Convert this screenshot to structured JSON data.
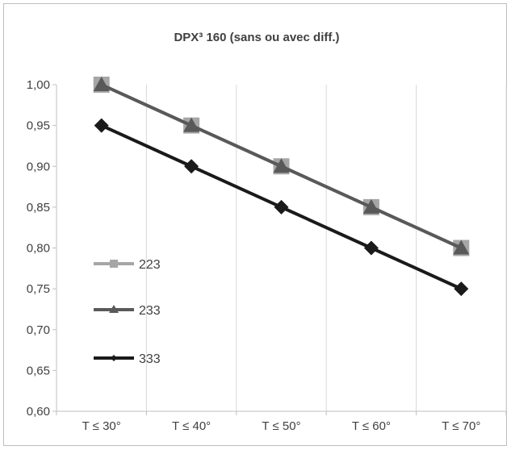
{
  "chart_data": {
    "type": "line",
    "title": "DPX³ 160 (sans ou avec diff.)",
    "xlabel": "",
    "ylabel": "",
    "categories": [
      "T ≤ 30°",
      "T ≤ 40°",
      "T ≤ 50°",
      "T ≤ 60°",
      "T ≤ 70°"
    ],
    "ylim": [
      0.6,
      1.0
    ],
    "yticks": [
      "0,60",
      "0,65",
      "0,70",
      "0,75",
      "0,80",
      "0,85",
      "0,90",
      "0,95",
      "1,00"
    ],
    "grid": "vertical",
    "legend_position": "left, inside plot",
    "series": [
      {
        "name": "223",
        "values": [
          1.0,
          0.95,
          0.9,
          0.85,
          0.8
        ],
        "color": "#a6a6a6",
        "marker": "square"
      },
      {
        "name": "233",
        "values": [
          1.0,
          0.95,
          0.9,
          0.85,
          0.8
        ],
        "color": "#595959",
        "marker": "triangle"
      },
      {
        "name": "333",
        "values": [
          0.95,
          0.9,
          0.85,
          0.8,
          0.75
        ],
        "color": "#1a1a1a",
        "marker": "diamond"
      }
    ]
  }
}
